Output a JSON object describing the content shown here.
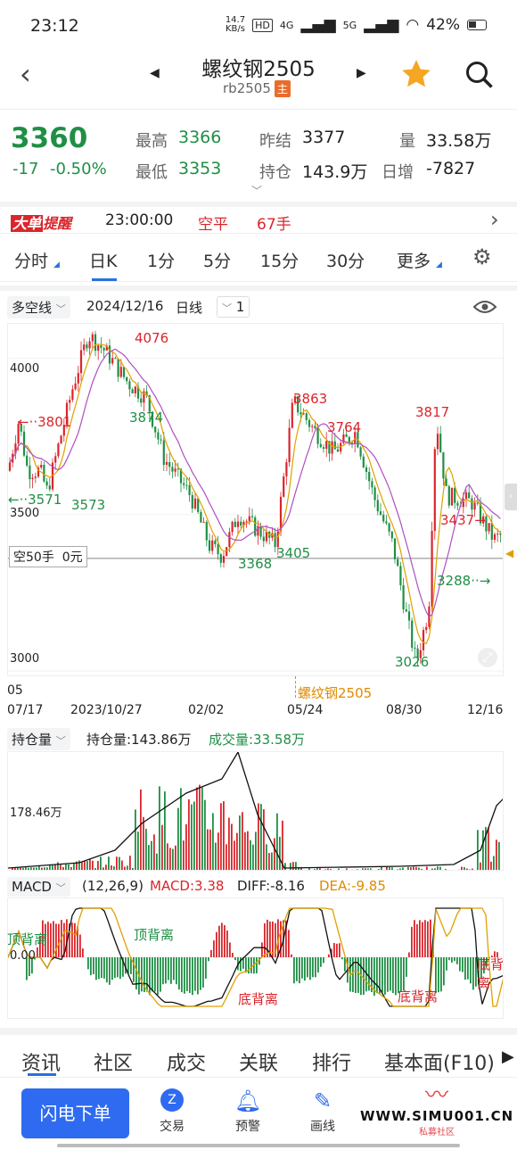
{
  "status": {
    "time": "23:12",
    "speed": "14.7",
    "speed_unit": "KB/s",
    "net1": "4G",
    "net2": "5G",
    "battery": "42%"
  },
  "header": {
    "title": "螺纹钢2505",
    "code": "rb2505",
    "badge": "主"
  },
  "quote": {
    "price": "3360",
    "change": "-17",
    "pct": "-0.50%",
    "high_label": "最高",
    "high": "3366",
    "low_label": "最低",
    "low": "3353",
    "prev_label": "昨结",
    "prev": "3377",
    "oi_label": "持仓",
    "oi": "143.9万",
    "vol_label": "量",
    "vol": "33.58万",
    "daily_label": "日增",
    "daily": "-7827"
  },
  "alert": {
    "tag1": "大单",
    "tag2": "提醒",
    "time": "23:00:00",
    "action": "空平",
    "qty": "67手"
  },
  "tabs": [
    "分时",
    "日K",
    "1分",
    "5分",
    "15分",
    "30分",
    "更多"
  ],
  "toolbar": {
    "indicator": "多空线",
    "date": "2024/12/16",
    "period": "日线",
    "count": "1"
  },
  "kchart": {
    "y_labels": [
      "4000",
      "3500",
      "3000"
    ],
    "annotations": {
      "a4076": "4076",
      "a3801": "3801",
      "a3874": "3874",
      "a3571": "3571",
      "a3573": "3573",
      "a3863": "3863",
      "a3764": "3764",
      "a3817": "3817",
      "a3368": "3368",
      "a3405": "3405",
      "a3026": "3026",
      "a3288": "3288",
      "a3437": "3437"
    },
    "position_label": "空50手",
    "position_val": "0元",
    "watermark": "螺纹钢2505"
  },
  "xaxis": {
    "sub": "05",
    "labels": [
      "07/17",
      "2023/10/27",
      "02/02",
      "05/24",
      "08/30",
      "12/16"
    ]
  },
  "volume": {
    "selector": "持仓量",
    "oi_text": "持仓量:143.86万",
    "vol_text": "成交量:33.58万",
    "y_label": "178.46万"
  },
  "macd": {
    "selector": "MACD",
    "params": "(12,26,9)",
    "macd": "MACD:3.38",
    "diff": "DIFF:-8.16",
    "dea": "DEA:-9.85",
    "zero": "0.00",
    "top1": "顶背离",
    "top2": "顶背离",
    "bot1": "底背离",
    "bot2": "底背离",
    "bot3": "底背离"
  },
  "infotabs": [
    "资讯",
    "社区",
    "成交",
    "关联",
    "排行",
    "基本面(F10)"
  ],
  "bottom": {
    "button": "闪电下单",
    "items": [
      "交易",
      "预警",
      "画线"
    ],
    "site": "WWW.SIMU001.CN",
    "site_sub": "私募社区"
  },
  "chart_data": {
    "type": "candlestick",
    "title": "螺纹钢2505",
    "x": [
      "07/17",
      "2023/10/27",
      "02/02",
      "05/24",
      "08/30",
      "12/16"
    ],
    "ylim": [
      2980,
      4110
    ],
    "key_points": [
      3801,
      3571,
      3573,
      4076,
      3874,
      3368,
      3405,
      3863,
      3764,
      3817,
      3026,
      3288,
      3437
    ]
  }
}
